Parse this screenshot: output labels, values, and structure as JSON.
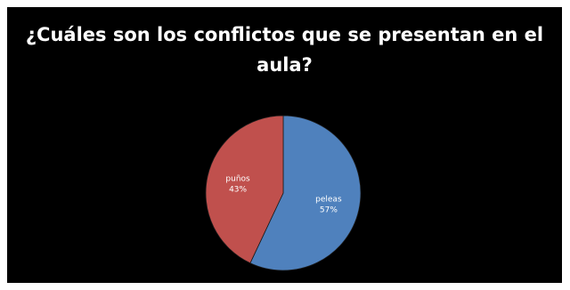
{
  "chart_data": {
    "type": "pie",
    "title": "¿Cuáles son los conflictos que se presentan en el aula?",
    "labels": [
      "peleas",
      "puños"
    ],
    "values": [
      57,
      43
    ],
    "data_labels": [
      "57%",
      "43%"
    ],
    "colors": [
      "#4f81bd",
      "#c0504d"
    ],
    "background": "#000000",
    "legend": "none"
  }
}
